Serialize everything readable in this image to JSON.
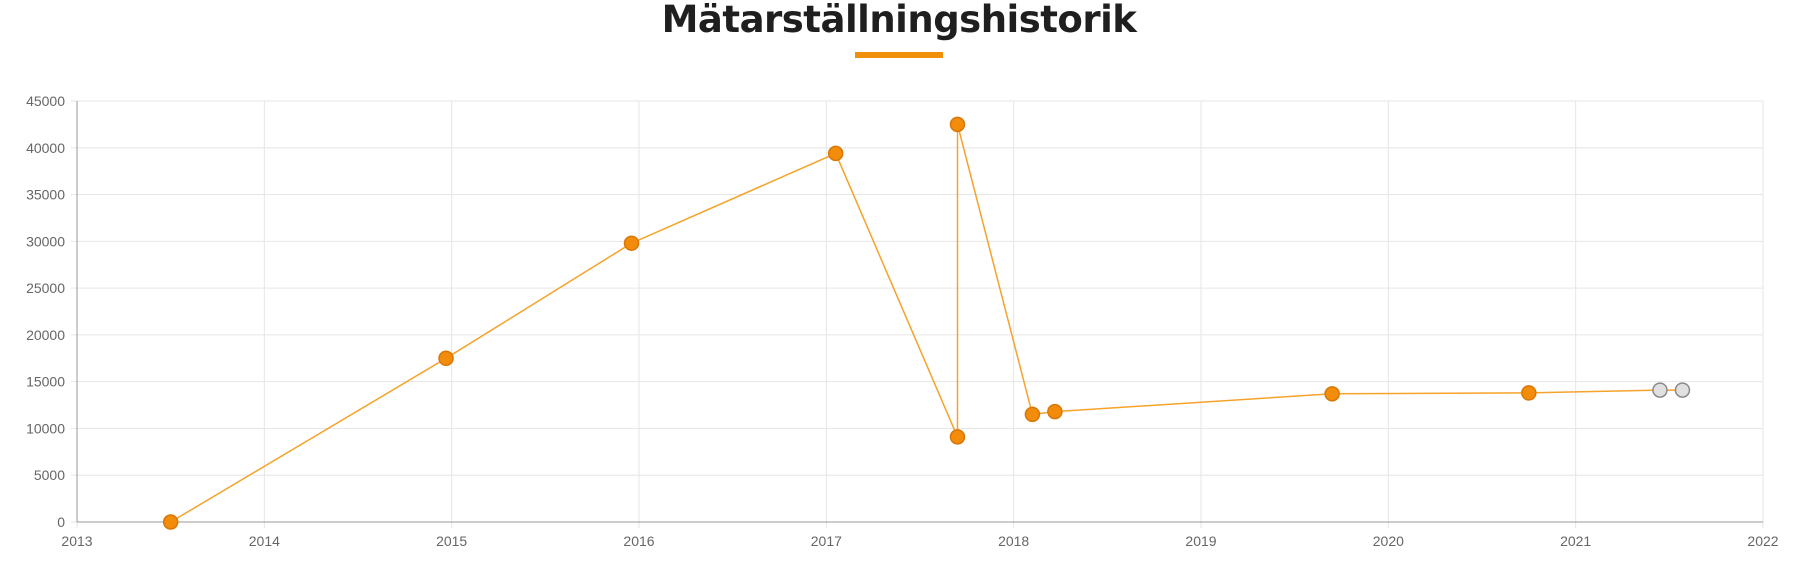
{
  "colors": {
    "accent": "#f0900a",
    "line": "#f5a32a",
    "marker_fill": "#f28c0a",
    "marker_stroke": "#d97706",
    "estimate_fill": "#e0e0e0",
    "estimate_stroke": "#8a8a8a",
    "grid": "#e6e6e6",
    "axis": "#999999",
    "title": "#1f1f1f"
  },
  "chart_data": {
    "type": "line",
    "title": "Mätarställningshistorik",
    "xlabel": "",
    "ylabel": "",
    "xlim": [
      2013,
      2022
    ],
    "ylim": [
      0,
      45000
    ],
    "grid": true,
    "legend": "none",
    "x_ticks": [
      "2013",
      "2014",
      "2015",
      "2016",
      "2017",
      "2018",
      "2019",
      "2020",
      "2021",
      "2022"
    ],
    "y_ticks": [
      "0",
      "5000",
      "10000",
      "15000",
      "20000",
      "25000",
      "30000",
      "35000",
      "40000",
      "45000"
    ],
    "points": [
      {
        "x": 2013.5,
        "y": 0,
        "estimated": false
      },
      {
        "x": 2014.97,
        "y": 17500,
        "estimated": false
      },
      {
        "x": 2015.96,
        "y": 29800,
        "estimated": false
      },
      {
        "x": 2017.05,
        "y": 39400,
        "estimated": false
      },
      {
        "x": 2017.7,
        "y": 9100,
        "estimated": false
      },
      {
        "x": 2017.7,
        "y": 42500,
        "estimated": false
      },
      {
        "x": 2018.1,
        "y": 11500,
        "estimated": false
      },
      {
        "x": 2018.22,
        "y": 11800,
        "estimated": false
      },
      {
        "x": 2019.7,
        "y": 13700,
        "estimated": false
      },
      {
        "x": 2020.75,
        "y": 13800,
        "estimated": false
      },
      {
        "x": 2021.45,
        "y": 14100,
        "estimated": true
      },
      {
        "x": 2021.57,
        "y": 14100,
        "estimated": true
      }
    ]
  }
}
